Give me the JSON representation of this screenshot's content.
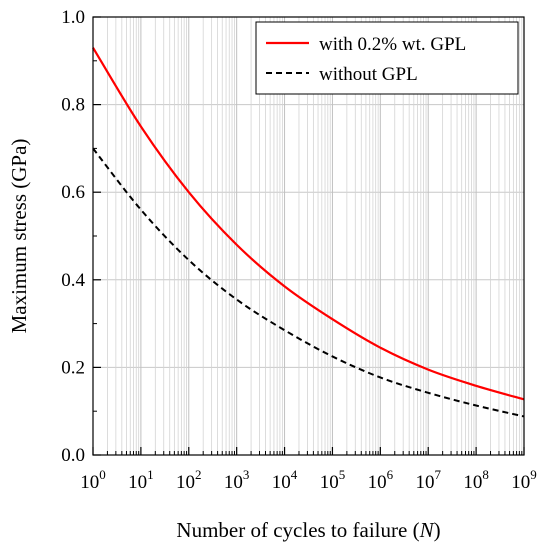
{
  "chart_data": {
    "type": "line",
    "title": "",
    "xlabel": {
      "prefix": "Number of cycles to failure (",
      "variable": "N",
      "suffix": ")"
    },
    "ylabel": "Maximum stress (GPa)",
    "x_scale": "log10",
    "xlim": [
      1,
      1000000000
    ],
    "ylim": [
      0.0,
      1.0
    ],
    "x_tick_exponents": [
      "0",
      "1",
      "2",
      "3",
      "4",
      "5",
      "6",
      "7",
      "8",
      "9"
    ],
    "x_tick_base": "10",
    "y_ticks": [
      "0.0",
      "0.2",
      "0.4",
      "0.6",
      "0.8",
      "1.0"
    ],
    "grid": true,
    "legend_position": "top-right",
    "series": [
      {
        "name": "with 0.2% wt. GPL",
        "color": "#ff0000",
        "line_style": "solid",
        "x": [
          1,
          10,
          100,
          1000,
          10000,
          100000,
          1000000,
          10000000,
          100000000,
          1000000000
        ],
        "y": [
          0.93,
          0.75,
          0.6,
          0.48,
          0.385,
          0.31,
          0.245,
          0.195,
          0.158,
          0.127
        ]
      },
      {
        "name": "without GPL",
        "color": "#000000",
        "line_style": "dashed",
        "x": [
          1,
          10,
          100,
          1000,
          10000,
          100000,
          1000000,
          10000000,
          100000000,
          1000000000
        ],
        "y": [
          0.7,
          0.56,
          0.445,
          0.355,
          0.285,
          0.225,
          0.177,
          0.142,
          0.113,
          0.088
        ]
      }
    ]
  }
}
